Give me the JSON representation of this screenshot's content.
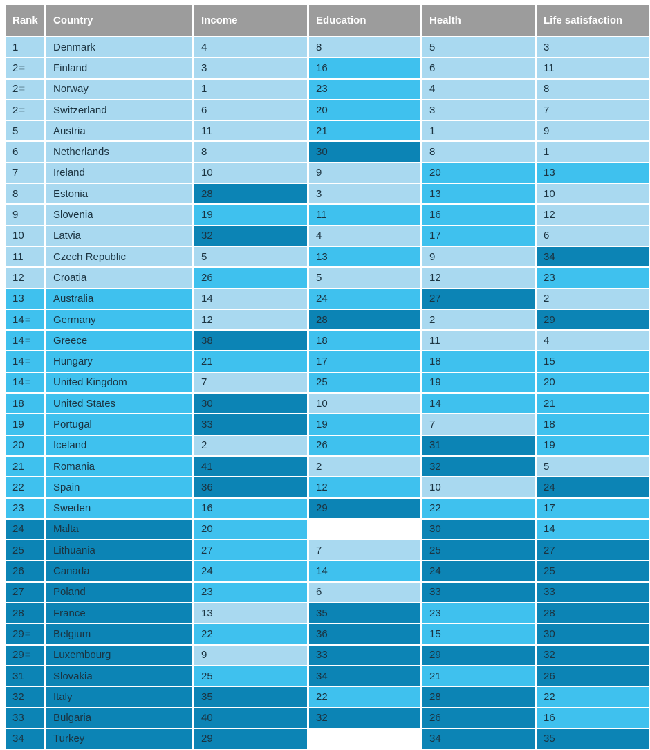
{
  "palette": {
    "light": "#a9d9f0",
    "medium": "#3fc1ee",
    "dark": "#0c84b5",
    "missing": "#ffffff",
    "header_bg": "#9c9c9c",
    "header_text": "#ffffff",
    "cell_text": "#1b3340",
    "tie_equals_color": "rgba(27,51,64,0.45)"
  },
  "chart_data": {
    "type": "table",
    "columns": [
      "Rank",
      "Country",
      "Income",
      "Education",
      "Health",
      "Life satisfaction"
    ],
    "tier_legend": [
      "light = top third",
      "medium = middle third",
      "dark = bottom third"
    ],
    "rows": [
      {
        "rank": "1",
        "tier": "light",
        "country": "Denmark",
        "income": {
          "v": "4",
          "tier": "light"
        },
        "education": {
          "v": "8",
          "tier": "light"
        },
        "health": {
          "v": "5",
          "tier": "light"
        },
        "life_satisfaction": {
          "v": "3",
          "tier": "light"
        }
      },
      {
        "rank": "2=",
        "tier": "light",
        "country": "Finland",
        "income": {
          "v": "3",
          "tier": "light"
        },
        "education": {
          "v": "16",
          "tier": "medium"
        },
        "health": {
          "v": "6",
          "tier": "light"
        },
        "life_satisfaction": {
          "v": "11",
          "tier": "light"
        }
      },
      {
        "rank": "2=",
        "tier": "light",
        "country": "Norway",
        "income": {
          "v": "1",
          "tier": "light"
        },
        "education": {
          "v": "23",
          "tier": "medium"
        },
        "health": {
          "v": "4",
          "tier": "light"
        },
        "life_satisfaction": {
          "v": "8",
          "tier": "light"
        }
      },
      {
        "rank": "2=",
        "tier": "light",
        "country": "Switzerland",
        "income": {
          "v": "6",
          "tier": "light"
        },
        "education": {
          "v": "20",
          "tier": "medium"
        },
        "health": {
          "v": "3",
          "tier": "light"
        },
        "life_satisfaction": {
          "v": "7",
          "tier": "light"
        }
      },
      {
        "rank": "5",
        "tier": "light",
        "country": "Austria",
        "income": {
          "v": "11",
          "tier": "light"
        },
        "education": {
          "v": "21",
          "tier": "medium"
        },
        "health": {
          "v": "1",
          "tier": "light"
        },
        "life_satisfaction": {
          "v": "9",
          "tier": "light"
        }
      },
      {
        "rank": "6",
        "tier": "light",
        "country": "Netherlands",
        "income": {
          "v": "8",
          "tier": "light"
        },
        "education": {
          "v": "30",
          "tier": "dark"
        },
        "health": {
          "v": "8",
          "tier": "light"
        },
        "life_satisfaction": {
          "v": "1",
          "tier": "light"
        }
      },
      {
        "rank": "7",
        "tier": "light",
        "country": "Ireland",
        "income": {
          "v": "10",
          "tier": "light"
        },
        "education": {
          "v": "9",
          "tier": "light"
        },
        "health": {
          "v": "20",
          "tier": "medium"
        },
        "life_satisfaction": {
          "v": "13",
          "tier": "medium"
        }
      },
      {
        "rank": "8",
        "tier": "light",
        "country": "Estonia",
        "income": {
          "v": "28",
          "tier": "dark"
        },
        "education": {
          "v": "3",
          "tier": "light"
        },
        "health": {
          "v": "13",
          "tier": "medium"
        },
        "life_satisfaction": {
          "v": "10",
          "tier": "light"
        }
      },
      {
        "rank": "9",
        "tier": "light",
        "country": "Slovenia",
        "income": {
          "v": "19",
          "tier": "medium"
        },
        "education": {
          "v": "11",
          "tier": "medium"
        },
        "health": {
          "v": "16",
          "tier": "medium"
        },
        "life_satisfaction": {
          "v": "12",
          "tier": "light"
        }
      },
      {
        "rank": "10",
        "tier": "light",
        "country": "Latvia",
        "income": {
          "v": "32",
          "tier": "dark"
        },
        "education": {
          "v": "4",
          "tier": "light"
        },
        "health": {
          "v": "17",
          "tier": "medium"
        },
        "life_satisfaction": {
          "v": "6",
          "tier": "light"
        }
      },
      {
        "rank": "11",
        "tier": "light",
        "country": "Czech Republic",
        "income": {
          "v": "5",
          "tier": "light"
        },
        "education": {
          "v": "13",
          "tier": "medium"
        },
        "health": {
          "v": "9",
          "tier": "light"
        },
        "life_satisfaction": {
          "v": "34",
          "tier": "dark"
        }
      },
      {
        "rank": "12",
        "tier": "light",
        "country": "Croatia",
        "income": {
          "v": "26",
          "tier": "medium"
        },
        "education": {
          "v": "5",
          "tier": "light"
        },
        "health": {
          "v": "12",
          "tier": "light"
        },
        "life_satisfaction": {
          "v": "23",
          "tier": "medium"
        }
      },
      {
        "rank": "13",
        "tier": "medium",
        "country": "Australia",
        "income": {
          "v": "14",
          "tier": "light"
        },
        "education": {
          "v": "24",
          "tier": "medium"
        },
        "health": {
          "v": "27",
          "tier": "dark"
        },
        "life_satisfaction": {
          "v": "2",
          "tier": "light"
        }
      },
      {
        "rank": "14=",
        "tier": "medium",
        "country": "Germany",
        "income": {
          "v": "12",
          "tier": "light"
        },
        "education": {
          "v": "28",
          "tier": "dark"
        },
        "health": {
          "v": "2",
          "tier": "light"
        },
        "life_satisfaction": {
          "v": "29",
          "tier": "dark"
        }
      },
      {
        "rank": "14=",
        "tier": "medium",
        "country": "Greece",
        "income": {
          "v": "38",
          "tier": "dark"
        },
        "education": {
          "v": "18",
          "tier": "medium"
        },
        "health": {
          "v": "11",
          "tier": "light"
        },
        "life_satisfaction": {
          "v": "4",
          "tier": "light"
        }
      },
      {
        "rank": "14=",
        "tier": "medium",
        "country": "Hungary",
        "income": {
          "v": "21",
          "tier": "medium"
        },
        "education": {
          "v": "17",
          "tier": "medium"
        },
        "health": {
          "v": "18",
          "tier": "medium"
        },
        "life_satisfaction": {
          "v": "15",
          "tier": "medium"
        }
      },
      {
        "rank": "14=",
        "tier": "medium",
        "country": "United Kingdom",
        "income": {
          "v": "7",
          "tier": "light"
        },
        "education": {
          "v": "25",
          "tier": "medium"
        },
        "health": {
          "v": "19",
          "tier": "medium"
        },
        "life_satisfaction": {
          "v": "20",
          "tier": "medium"
        }
      },
      {
        "rank": "18",
        "tier": "medium",
        "country": "United States",
        "income": {
          "v": "30",
          "tier": "dark"
        },
        "education": {
          "v": "10",
          "tier": "light"
        },
        "health": {
          "v": "14",
          "tier": "medium"
        },
        "life_satisfaction": {
          "v": "21",
          "tier": "medium"
        }
      },
      {
        "rank": "19",
        "tier": "medium",
        "country": "Portugal",
        "income": {
          "v": "33",
          "tier": "dark"
        },
        "education": {
          "v": "19",
          "tier": "medium"
        },
        "health": {
          "v": "7",
          "tier": "light"
        },
        "life_satisfaction": {
          "v": "18",
          "tier": "medium"
        }
      },
      {
        "rank": "20",
        "tier": "medium",
        "country": "Iceland",
        "income": {
          "v": "2",
          "tier": "light"
        },
        "education": {
          "v": "26",
          "tier": "medium"
        },
        "health": {
          "v": "31",
          "tier": "dark"
        },
        "life_satisfaction": {
          "v": "19",
          "tier": "medium"
        }
      },
      {
        "rank": "21",
        "tier": "medium",
        "country": "Romania",
        "income": {
          "v": "41",
          "tier": "dark"
        },
        "education": {
          "v": "2",
          "tier": "light"
        },
        "health": {
          "v": "32",
          "tier": "dark"
        },
        "life_satisfaction": {
          "v": "5",
          "tier": "light"
        }
      },
      {
        "rank": "22",
        "tier": "medium",
        "country": "Spain",
        "income": {
          "v": "36",
          "tier": "dark"
        },
        "education": {
          "v": "12",
          "tier": "medium"
        },
        "health": {
          "v": "10",
          "tier": "light"
        },
        "life_satisfaction": {
          "v": "24",
          "tier": "dark"
        }
      },
      {
        "rank": "23",
        "tier": "medium",
        "country": "Sweden",
        "income": {
          "v": "16",
          "tier": "medium"
        },
        "education": {
          "v": "29",
          "tier": "dark"
        },
        "health": {
          "v": "22",
          "tier": "medium"
        },
        "life_satisfaction": {
          "v": "17",
          "tier": "medium"
        }
      },
      {
        "rank": "24",
        "tier": "dark",
        "country": "Malta",
        "income": {
          "v": "20",
          "tier": "medium"
        },
        "education": {
          "v": "",
          "tier": "blank"
        },
        "health": {
          "v": "30",
          "tier": "dark"
        },
        "life_satisfaction": {
          "v": "14",
          "tier": "medium"
        }
      },
      {
        "rank": "25",
        "tier": "dark",
        "country": "Lithuania",
        "income": {
          "v": "27",
          "tier": "medium"
        },
        "education": {
          "v": "7",
          "tier": "light"
        },
        "health": {
          "v": "25",
          "tier": "dark"
        },
        "life_satisfaction": {
          "v": "27",
          "tier": "dark"
        }
      },
      {
        "rank": "26",
        "tier": "dark",
        "country": "Canada",
        "income": {
          "v": "24",
          "tier": "medium"
        },
        "education": {
          "v": "14",
          "tier": "medium"
        },
        "health": {
          "v": "24",
          "tier": "dark"
        },
        "life_satisfaction": {
          "v": "25",
          "tier": "dark"
        }
      },
      {
        "rank": "27",
        "tier": "dark",
        "country": "Poland",
        "income": {
          "v": "23",
          "tier": "medium"
        },
        "education": {
          "v": "6",
          "tier": "light"
        },
        "health": {
          "v": "33",
          "tier": "dark"
        },
        "life_satisfaction": {
          "v": "33",
          "tier": "dark"
        }
      },
      {
        "rank": "28",
        "tier": "dark",
        "country": "France",
        "income": {
          "v": "13",
          "tier": "light"
        },
        "education": {
          "v": "35",
          "tier": "dark"
        },
        "health": {
          "v": "23",
          "tier": "medium"
        },
        "life_satisfaction": {
          "v": "28",
          "tier": "dark"
        }
      },
      {
        "rank": "29=",
        "tier": "dark",
        "country": "Belgium",
        "income": {
          "v": "22",
          "tier": "medium"
        },
        "education": {
          "v": "36",
          "tier": "dark"
        },
        "health": {
          "v": "15",
          "tier": "medium"
        },
        "life_satisfaction": {
          "v": "30",
          "tier": "dark"
        }
      },
      {
        "rank": "29=",
        "tier": "dark",
        "country": "Luxembourg",
        "income": {
          "v": "9",
          "tier": "light"
        },
        "education": {
          "v": "33",
          "tier": "dark"
        },
        "health": {
          "v": "29",
          "tier": "dark"
        },
        "life_satisfaction": {
          "v": "32",
          "tier": "dark"
        }
      },
      {
        "rank": "31",
        "tier": "dark",
        "country": "Slovakia",
        "income": {
          "v": "25",
          "tier": "medium"
        },
        "education": {
          "v": "34",
          "tier": "dark"
        },
        "health": {
          "v": "21",
          "tier": "medium"
        },
        "life_satisfaction": {
          "v": "26",
          "tier": "dark"
        }
      },
      {
        "rank": "32",
        "tier": "dark",
        "country": "Italy",
        "income": {
          "v": "35",
          "tier": "dark"
        },
        "education": {
          "v": "22",
          "tier": "medium"
        },
        "health": {
          "v": "28",
          "tier": "dark"
        },
        "life_satisfaction": {
          "v": "22",
          "tier": "medium"
        }
      },
      {
        "rank": "33",
        "tier": "dark",
        "country": "Bulgaria",
        "income": {
          "v": "40",
          "tier": "dark"
        },
        "education": {
          "v": "32",
          "tier": "dark"
        },
        "health": {
          "v": "26",
          "tier": "dark"
        },
        "life_satisfaction": {
          "v": "16",
          "tier": "medium"
        }
      },
      {
        "rank": "34",
        "tier": "dark",
        "country": "Turkey",
        "income": {
          "v": "29",
          "tier": "dark"
        },
        "education": {
          "v": "",
          "tier": "blank"
        },
        "health": {
          "v": "34",
          "tier": "dark"
        },
        "life_satisfaction": {
          "v": "35",
          "tier": "dark"
        }
      }
    ]
  }
}
